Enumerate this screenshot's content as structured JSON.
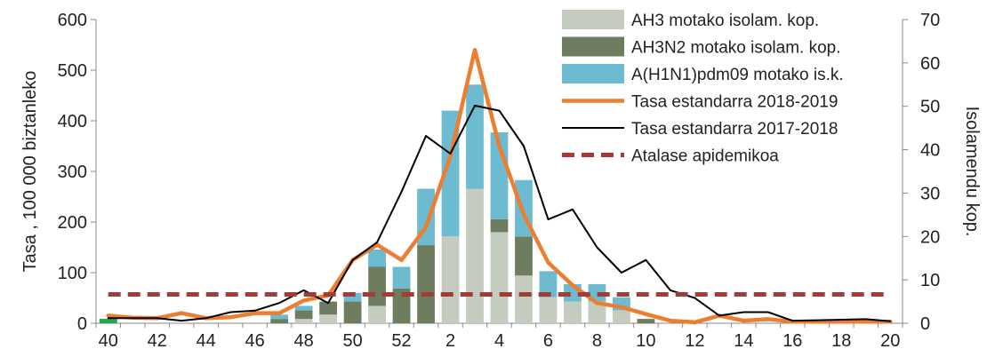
{
  "chart_data": {
    "type": "bar+line",
    "xlabel": "",
    "ylabel": "Tasa , 100 000  biztanleko",
    "y2label": "Isolamendu kop.",
    "ylim": [
      0,
      600
    ],
    "y2lim": [
      0,
      70
    ],
    "yticks": [
      0,
      100,
      200,
      300,
      400,
      500,
      600
    ],
    "y2ticks": [
      0,
      10,
      20,
      30,
      40,
      50,
      60,
      70
    ],
    "x_tick_labels": [
      "40",
      "42",
      "44",
      "46",
      "48",
      "50",
      "52",
      "2",
      "4",
      "6",
      "8",
      "10",
      "12",
      "14",
      "16",
      "18",
      "20"
    ],
    "weeks": [
      "40",
      "41",
      "42",
      "43",
      "44",
      "45",
      "46",
      "47",
      "48",
      "49",
      "50",
      "51",
      "52",
      "1",
      "2",
      "3",
      "4",
      "5",
      "6",
      "7",
      "8",
      "9",
      "10",
      "11",
      "12",
      "13",
      "14",
      "15",
      "16",
      "17",
      "18",
      "19",
      "20"
    ],
    "grid": false,
    "legend_position": "top-right",
    "bar_series": [
      {
        "name": "AH3 motako isolam. kop.",
        "color": "#c4cbbf",
        "axis": "right",
        "values": [
          0,
          0,
          0,
          0,
          0,
          0,
          0,
          0,
          1,
          2,
          0,
          4,
          0,
          0,
          20,
          31,
          21,
          11,
          6,
          5,
          5,
          3,
          0,
          0,
          0,
          0,
          0,
          0,
          0,
          0,
          0,
          0,
          0
        ]
      },
      {
        "name": "AH3N2 motako isolam. kop.",
        "color": "#6e7d60",
        "axis": "right",
        "values": [
          0,
          0,
          0,
          0,
          0,
          0,
          0,
          1,
          2,
          3,
          5,
          9,
          8,
          18,
          0,
          0,
          3,
          9,
          0,
          0,
          0,
          0,
          1,
          0,
          0,
          0,
          0,
          0,
          0,
          0,
          0,
          0,
          0
        ]
      },
      {
        "name": "A(H1N1)pdm09 motako is.k.",
        "color": "#6dbbd0",
        "axis": "right",
        "values": [
          1,
          0,
          0,
          0,
          0,
          0,
          0,
          1,
          1,
          0,
          2,
          4,
          5,
          13,
          29,
          24,
          20,
          13,
          6,
          4,
          4,
          3,
          0,
          0,
          0,
          0,
          0,
          0,
          0,
          0,
          0,
          0,
          0
        ]
      }
    ],
    "line_series": [
      {
        "name": "Tasa estandarra 2018-2019",
        "color": "#ed7d31",
        "axis": "left",
        "values": [
          15,
          11,
          10,
          20,
          10,
          12,
          20,
          20,
          45,
          55,
          125,
          155,
          125,
          190,
          330,
          540,
          350,
          215,
          120,
          75,
          40,
          32,
          18,
          5,
          2,
          15,
          5,
          8,
          3,
          3,
          3,
          3,
          3
        ]
      },
      {
        "name": "Tasa estandarra 2017-2018",
        "color": "#000000",
        "axis": "left",
        "values": [
          10,
          10,
          10,
          5,
          10,
          22,
          25,
          40,
          65,
          40,
          125,
          160,
          260,
          370,
          335,
          430,
          420,
          350,
          205,
          225,
          150,
          100,
          125,
          65,
          50,
          15,
          22,
          22,
          5,
          6,
          7,
          8,
          4
        ]
      },
      {
        "name": "Atalase apidemikoa",
        "color": "#a33b36",
        "axis": "left",
        "dashed": true,
        "values": [
          57,
          57,
          57,
          57,
          57,
          57,
          57,
          57,
          57,
          57,
          57,
          57,
          57,
          57,
          57,
          57,
          57,
          57,
          57,
          57,
          57,
          57,
          57,
          57,
          57,
          57,
          57,
          57,
          57,
          57,
          57,
          57,
          57
        ]
      }
    ],
    "extra_marks": [
      {
        "week": "40",
        "value": 1,
        "color": "#22a84a",
        "axis": "right"
      }
    ]
  }
}
